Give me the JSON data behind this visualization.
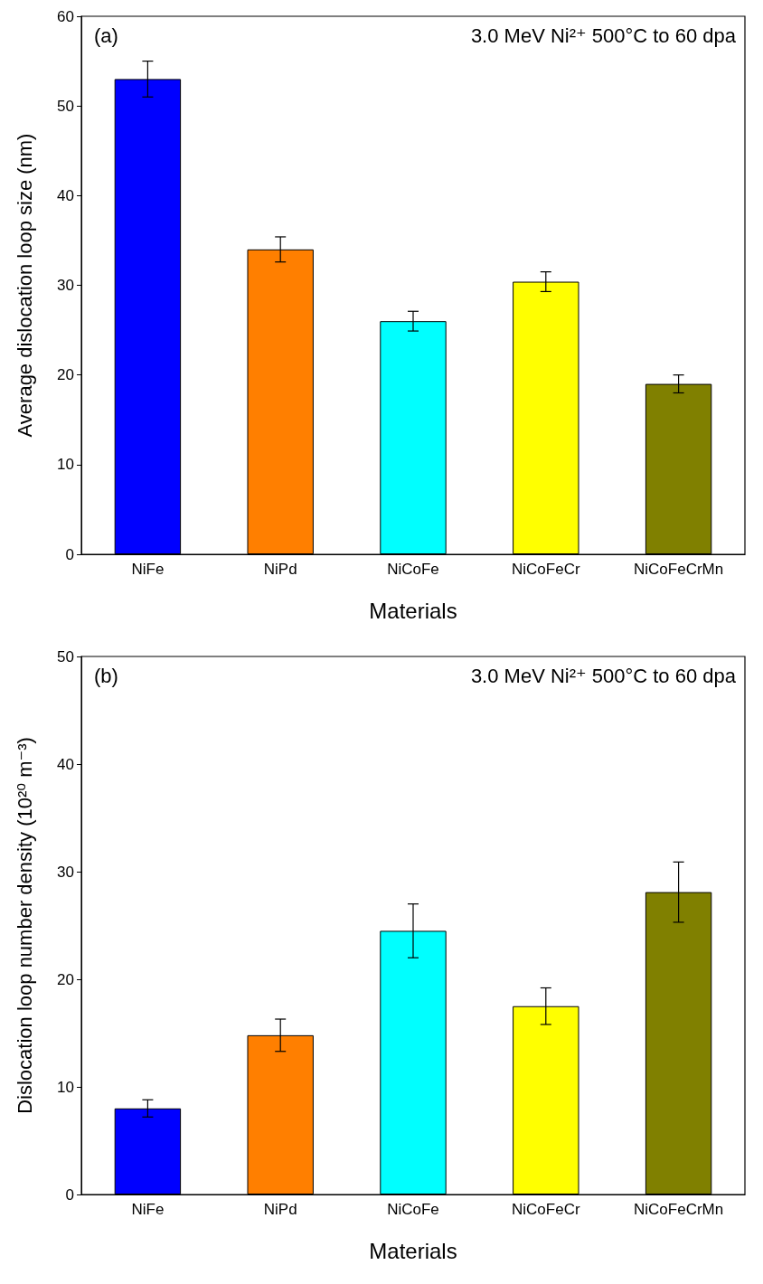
{
  "chart_data": [
    {
      "type": "bar",
      "categories": [
        "NiFe",
        "NiPd",
        "NiCoFe",
        "NiCoFeCr",
        "NiCoFeCrMn"
      ],
      "values": [
        53,
        34,
        26,
        30.4,
        19
      ],
      "errors": [
        2,
        1.4,
        1.1,
        1.1,
        1
      ],
      "colors": [
        "#0000ff",
        "#ff7f00",
        "#00ffff",
        "#ffff00",
        "#808000"
      ],
      "xlabel": "Materials",
      "ylabel": "Average dislocation loop size (nm)",
      "ylim": [
        0,
        60
      ],
      "yticks": [
        0,
        10,
        20,
        30,
        40,
        50,
        60
      ],
      "annotations": [
        "(a)",
        "3.0 MeV Ni²⁺ 500°C to 60 dpa"
      ],
      "grid": false
    },
    {
      "type": "bar",
      "categories": [
        "NiFe",
        "NiPd",
        "NiCoFe",
        "NiCoFeCr",
        "NiCoFeCrMn"
      ],
      "values": [
        8,
        14.8,
        24.5,
        17.5,
        28.1
      ],
      "errors": [
        0.8,
        1.5,
        2.5,
        1.7,
        2.8
      ],
      "colors": [
        "#0000ff",
        "#ff7f00",
        "#00ffff",
        "#ffff00",
        "#808000"
      ],
      "xlabel": "Materials",
      "ylabel": "Dislocation loop number density (10²⁰ m⁻³)",
      "ylim": [
        0,
        50
      ],
      "yticks": [
        0,
        10,
        20,
        30,
        40,
        50
      ],
      "annotations": [
        "(b)",
        "3.0 MeV Ni²⁺ 500°C to 60 dpa"
      ],
      "grid": false
    }
  ]
}
